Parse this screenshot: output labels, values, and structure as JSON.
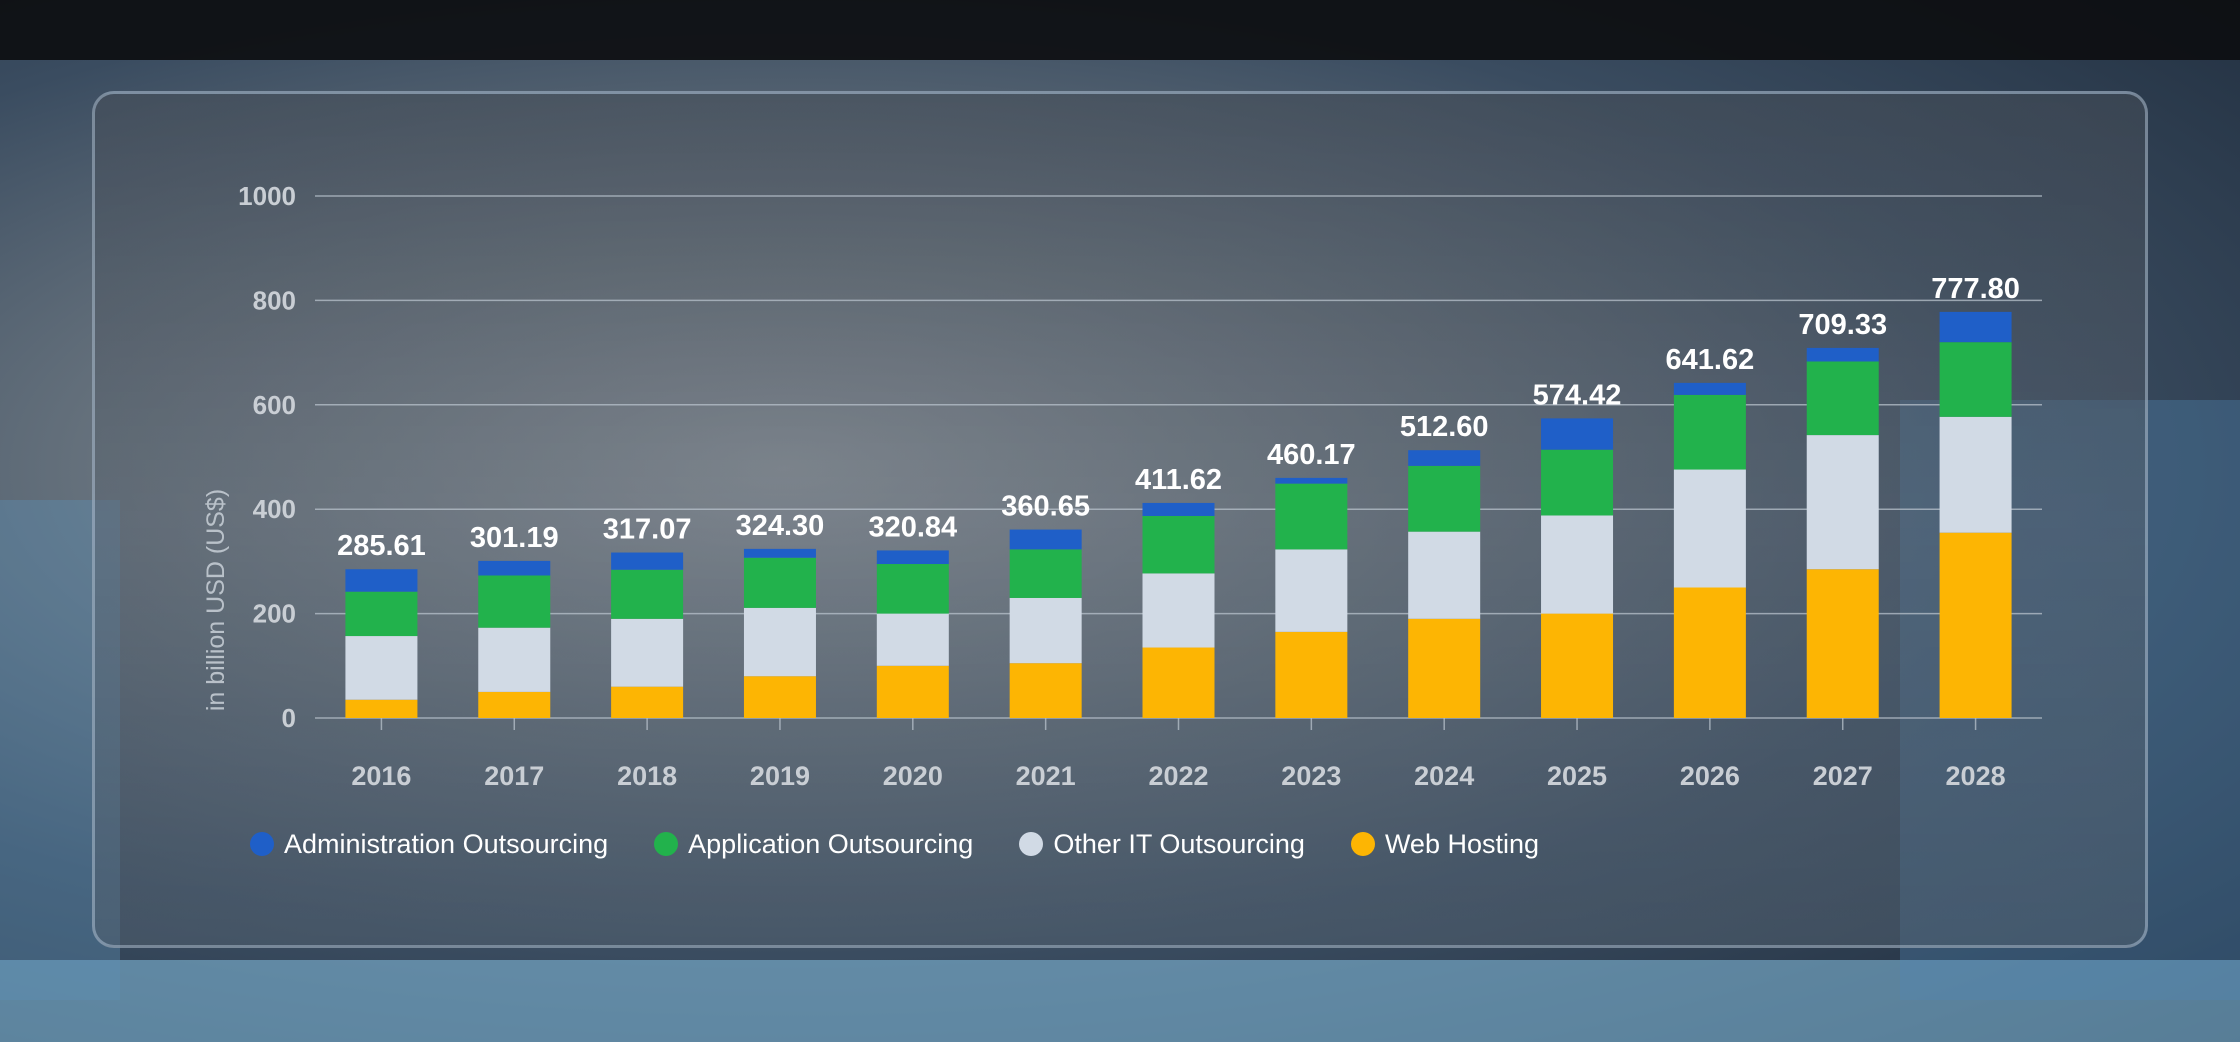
{
  "chart_data": {
    "type": "bar",
    "stacked": true,
    "categories": [
      "2016",
      "2017",
      "2018",
      "2019",
      "2020",
      "2021",
      "2022",
      "2023",
      "2024",
      "2025",
      "2026",
      "2027",
      "2028"
    ],
    "series": [
      {
        "name": "Web Hosting",
        "color": "#FDB503",
        "values": [
          35,
          50,
          60,
          80,
          100,
          105,
          135,
          165,
          190,
          200,
          250,
          285,
          355
        ]
      },
      {
        "name": "Other IT Outsourcing",
        "color": "#D1DAE5",
        "values": [
          122,
          123,
          130,
          131,
          100,
          125,
          142,
          158,
          167,
          188,
          226,
          257,
          222
        ]
      },
      {
        "name": "Application Outsourcing",
        "color": "#22B24C",
        "values": [
          85,
          100,
          94,
          96,
          95,
          93,
          110,
          126,
          126,
          126,
          143,
          141,
          143
        ]
      },
      {
        "name": "Administration Outsourcing",
        "color": "#1F5FC8",
        "values": [
          43,
          28,
          33,
          17,
          26,
          38,
          25,
          11,
          30,
          60,
          23,
          26,
          58
        ]
      }
    ],
    "totals": [
      "285.61",
      "301.19",
      "317.07",
      "324.30",
      "320.84",
      "360.65",
      "411.62",
      "460.17",
      "512.60",
      "574.42",
      "641.62",
      "709.33",
      "777.80"
    ],
    "legend_order": [
      "Administration Outsourcing",
      "Application Outsourcing",
      "Other IT Outsourcing",
      "Web Hosting"
    ],
    "title": "",
    "xlabel": "",
    "ylabel": "in billion USD (US$)",
    "ylim": [
      0,
      1000
    ],
    "yticks": [
      0,
      200,
      400,
      600,
      800,
      1000
    ],
    "grid": true,
    "legend_position": "bottom-left"
  },
  "colors": {
    "tick_label": "#c9ced4",
    "gridline": "#b8c2cc",
    "total_label": "#ffffff"
  }
}
